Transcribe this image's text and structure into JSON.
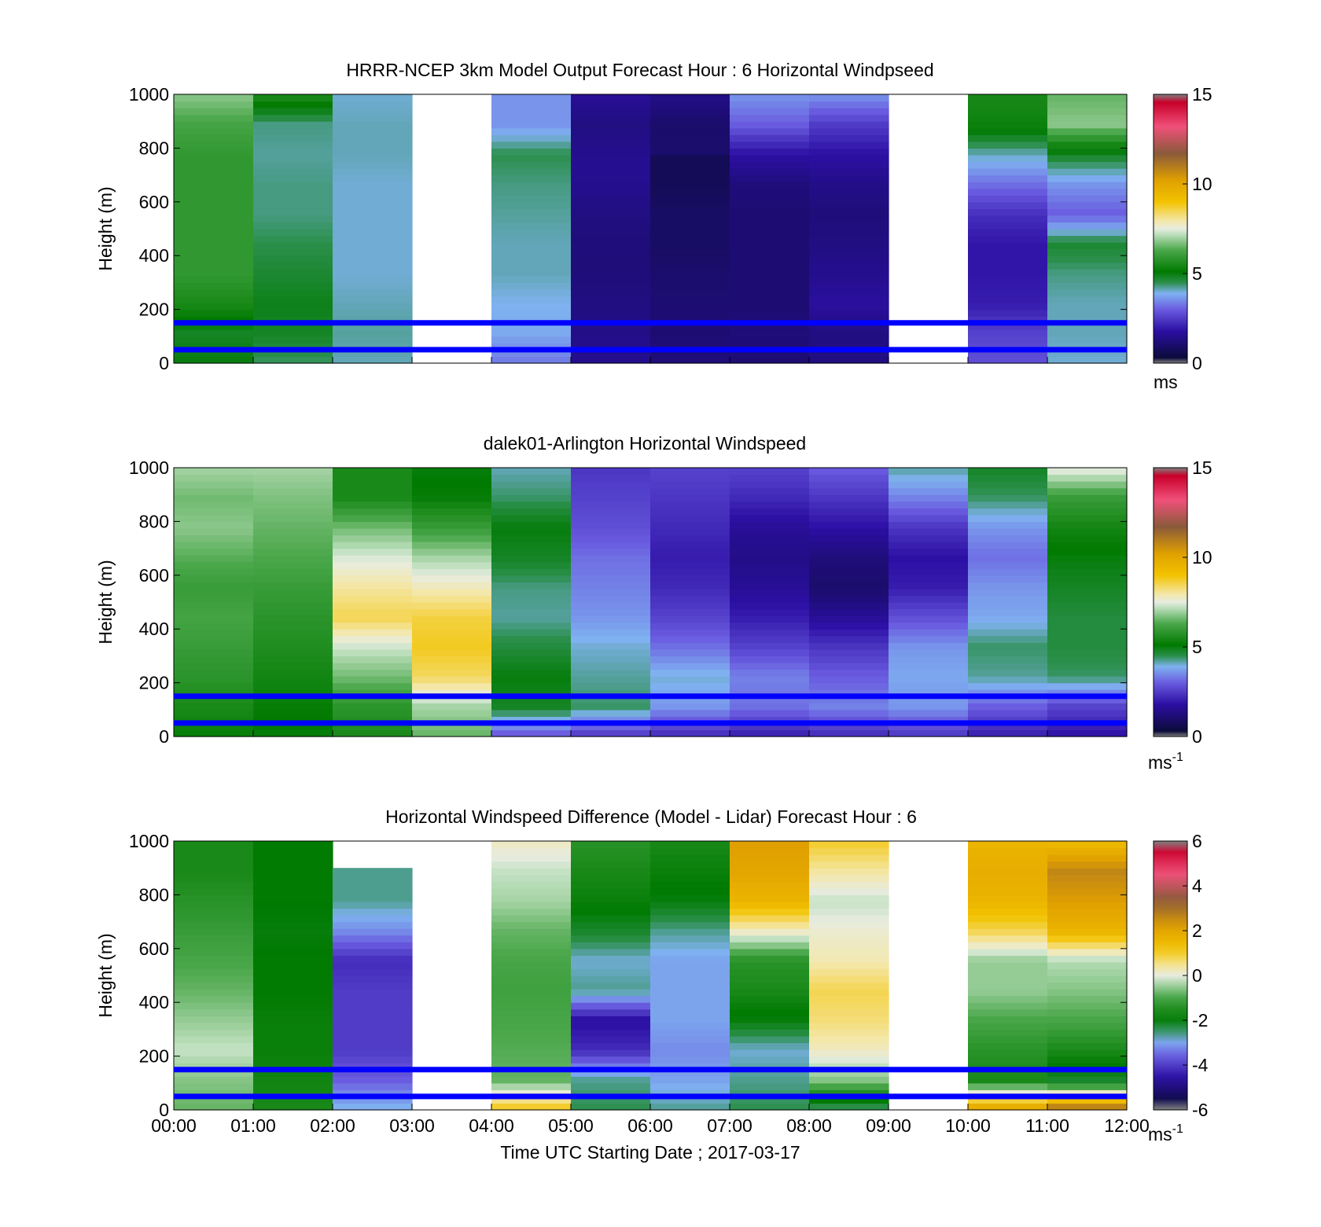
{
  "figure": {
    "x_tick_labels": [
      "00:00",
      "01:00",
      "02:00",
      "03:00",
      "04:00",
      "05:00",
      "06:00",
      "07:00",
      "08:00",
      "09:00",
      "10:00",
      "11:00",
      "12:00"
    ],
    "xlabel": "Time UTC  Starting Date ; 2017-03-17",
    "reference_line_color": "#0000ff",
    "reference_line_heights_m": [
      150,
      50
    ]
  },
  "chart_data": [
    {
      "type": "heatmap",
      "title": "HRRR-NCEP 3km Model Output   Forecast Hour : 6 Horizontal Windpseed",
      "ylabel": "Height (m)",
      "ylim": [
        0,
        1000
      ],
      "y_ticks": [
        "0",
        "200",
        "400",
        "600",
        "800",
        "1000"
      ],
      "colorbar": {
        "min": 0,
        "max": 15,
        "ticks": [
          "0",
          "5",
          "10",
          "15"
        ],
        "unit": "ms",
        "unit_sup": ""
      },
      "x_hours": [
        0,
        12
      ],
      "rows_heights_m": [
        0,
        1000
      ],
      "columns": [
        [
          5.0,
          4.8,
          5.5,
          5.9,
          5.9,
          5.9,
          5.9,
          5.9,
          6.2,
          6.8
        ],
        [
          4.4,
          4.8,
          4.9,
          4.7,
          4.5,
          4.3,
          4.3,
          4.2,
          4.3,
          5.6
        ],
        [
          4.1,
          4.2,
          4.1,
          4.0,
          4.0,
          4.0,
          4.0,
          4.1,
          4.1,
          4.0
        ],
        [
          null,
          null,
          null,
          null,
          null,
          null,
          null,
          null,
          null,
          null
        ],
        [
          3.3,
          3.8,
          3.9,
          4.1,
          4.1,
          4.2,
          4.3,
          4.5,
          3.6,
          3.6
        ],
        [
          1.5,
          1.4,
          1.3,
          1.2,
          1.2,
          1.3,
          1.5,
          1.5,
          1.3,
          1.6
        ],
        [
          1.2,
          1.1,
          1.1,
          1.0,
          0.9,
          0.9,
          0.7,
          null,
          1.0,
          1.4
        ],
        [
          1.1,
          1.2,
          1.1,
          1.1,
          1.1,
          1.1,
          1.2,
          1.8,
          3.0,
          3.6
        ],
        [
          1.3,
          1.3,
          1.7,
          1.5,
          1.3,
          1.2,
          1.4,
          1.8,
          2.5,
          3.6
        ],
        [
          null,
          null,
          null,
          null,
          null,
          null,
          null,
          null,
          null,
          null
        ],
        [
          2.8,
          2.6,
          2.0,
          1.9,
          1.9,
          2.3,
          3.2,
          4.1,
          5.3,
          5.5
        ],
        [
          4.0,
          4.1,
          4.1,
          4.3,
          4.7,
          3.0,
          3.6,
          4.8,
          6.8,
          6.5
        ]
      ]
    },
    {
      "type": "heatmap",
      "title": "dalek01-Arlington  Horizontal Windspeed",
      "ylabel": "Height (m)",
      "ylim": [
        0,
        1000
      ],
      "y_ticks": [
        "0",
        "200",
        "400",
        "600",
        "800",
        "1000"
      ],
      "colorbar": {
        "min": 0,
        "max": 15,
        "ticks": [
          "0",
          "5",
          "10",
          "15"
        ],
        "unit": "ms",
        "unit_sup": "-1"
      },
      "x_hours": [
        0,
        12
      ],
      "rows_heights_m": [
        0,
        1000
      ],
      "columns": [
        [
          5.2,
          5.5,
          5.8,
          6.0,
          6.2,
          6.0,
          6.4,
          6.8,
          6.6,
          7.0
        ],
        [
          5.0,
          5.2,
          5.4,
          5.6,
          5.8,
          6.0,
          6.3,
          6.5,
          6.7,
          7.0
        ],
        [
          5.5,
          5.8,
          6.6,
          7.3,
          8.5,
          8.0,
          7.4,
          6.6,
          5.5,
          null
        ],
        [
          6.5,
          7.0,
          8.4,
          8.8,
          8.6,
          7.8,
          7.0,
          6.0,
          5.2,
          5.0
        ],
        [
          2.8,
          4.8,
          5.0,
          4.6,
          4.2,
          4.3,
          4.8,
          5.0,
          4.4,
          4.1
        ],
        [
          2.4,
          4.4,
          4.2,
          4.0,
          3.6,
          3.4,
          3.2,
          2.8,
          2.6,
          2.4
        ],
        [
          2.2,
          3.6,
          4.0,
          3.2,
          2.6,
          2.2,
          2.0,
          2.2,
          2.4,
          2.6
        ],
        [
          2.0,
          3.2,
          3.4,
          2.6,
          2.0,
          1.6,
          1.4,
          1.6,
          2.2,
          2.6
        ],
        [
          2.2,
          3.4,
          3.0,
          2.4,
          1.6,
          1.0,
          1.2,
          1.8,
          2.4,
          3.0
        ],
        [
          2.4,
          3.6,
          3.8,
          3.6,
          2.8,
          2.0,
          1.8,
          2.4,
          3.4,
          4.2
        ],
        [
          2.0,
          3.0,
          4.2,
          4.4,
          3.8,
          3.6,
          3.2,
          3.6,
          4.4,
          4.8
        ],
        [
          1.8,
          2.6,
          4.4,
          4.6,
          4.6,
          4.8,
          5.0,
          5.4,
          6.0,
          7.6
        ]
      ]
    },
    {
      "type": "heatmap",
      "title": "Horizontal Windspeed Difference (Model - Lidar) Forecast Hour : 6",
      "ylabel": "Height (m)",
      "ylim": [
        0,
        1000
      ],
      "y_ticks": [
        "0",
        "200",
        "400",
        "600",
        "800",
        "1000"
      ],
      "colorbar": {
        "min": -6,
        "max": 6,
        "ticks": [
          "-6",
          "-4",
          "-2",
          "0",
          "2",
          "4",
          "6"
        ],
        "unit": "ms",
        "unit_sup": "-1"
      },
      "x_hours": [
        0,
        12
      ],
      "rows_heights_m": [
        0,
        1000
      ],
      "columns": [
        [
          -0.8,
          -0.6,
          -0.2,
          -0.5,
          -0.8,
          -1.0,
          -1.2,
          -1.4,
          -1.6,
          -1.6
        ],
        [
          -1.6,
          -1.7,
          -1.8,
          -1.8,
          -1.9,
          -1.9,
          -2.0,
          -1.9,
          -1.9,
          null
        ],
        [
          -2.8,
          -3.6,
          -4.0,
          -4.0,
          -4.0,
          -4.2,
          -3.2,
          -2.6,
          null,
          null
        ],
        [
          null,
          null,
          null,
          null,
          null,
          null,
          null,
          null,
          null,
          null
        ],
        [
          1.2,
          -0.8,
          -0.9,
          -1.0,
          -1.1,
          -1.0,
          -0.8,
          -0.4,
          -0.2,
          0.2
        ],
        [
          -2.4,
          -2.6,
          -4.2,
          -4.6,
          -2.6,
          -2.8,
          -2.2,
          -1.8,
          -1.6,
          -1.4
        ],
        [
          -2.6,
          -3.0,
          -3.2,
          -3.0,
          -3.0,
          -3.0,
          -2.6,
          -2.0,
          -1.8,
          -1.6
        ],
        [
          -2.4,
          -2.6,
          -2.8,
          -2.0,
          -1.6,
          -1.4,
          0.2,
          1.6,
          2.0,
          2.2
        ],
        [
          -2.6,
          -0.6,
          0.2,
          0.6,
          0.8,
          0.3,
          0.1,
          -0.2,
          0.4,
          1.0
        ],
        [
          null,
          null,
          null,
          null,
          null,
          null,
          null,
          null,
          null,
          null
        ],
        [
          2.2,
          -1.6,
          -1.4,
          -1.0,
          -0.5,
          -0.5,
          0.8,
          1.6,
          1.8,
          1.6
        ],
        [
          3.2,
          -2.2,
          -1.6,
          -1.0,
          -0.6,
          -0.3,
          1.6,
          2.2,
          2.6,
          1.4
        ]
      ]
    }
  ]
}
